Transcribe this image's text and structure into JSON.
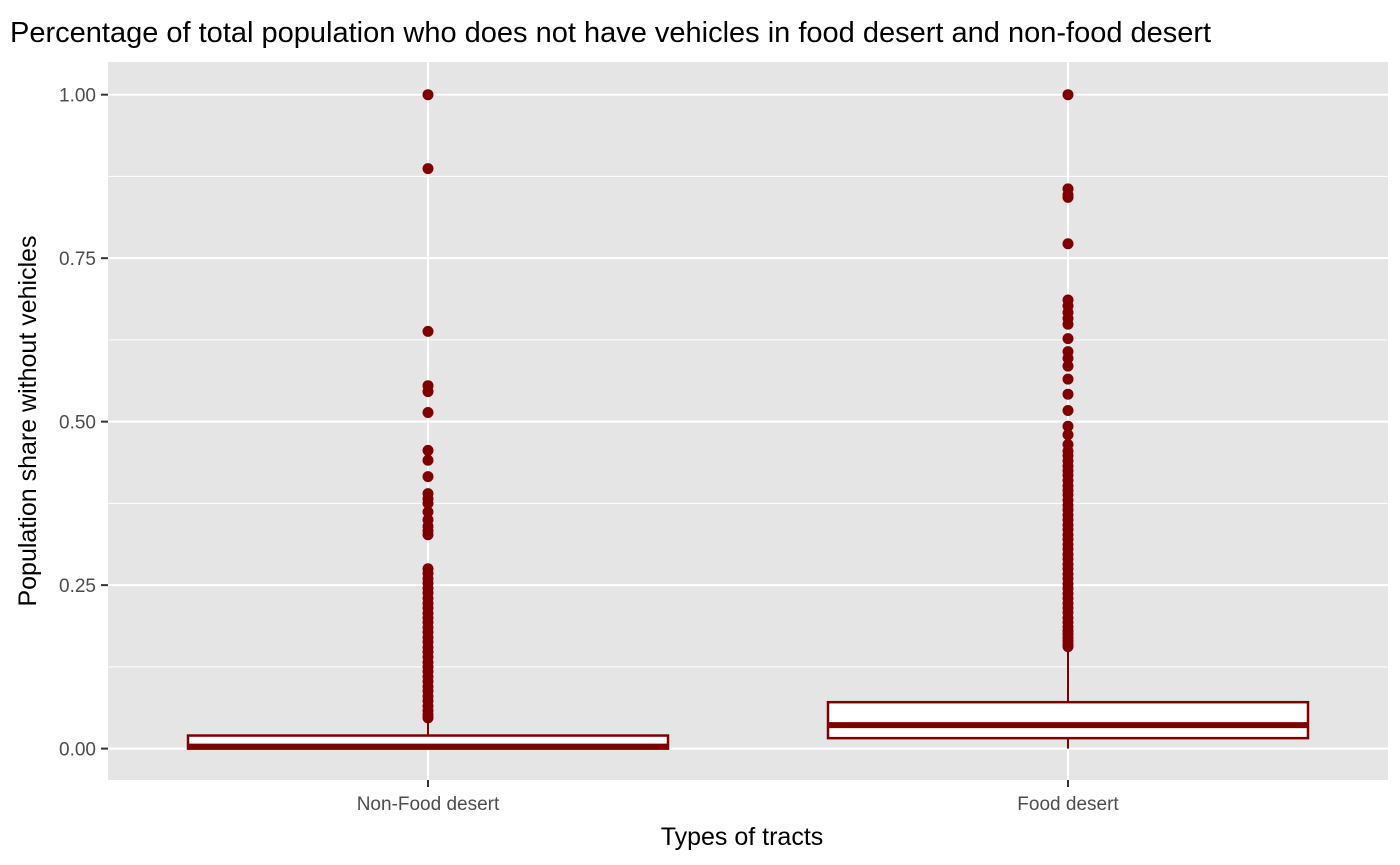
{
  "chart_data": {
    "type": "boxplot",
    "title": "Percentage of total population who does not have vehicles in food desert and non-food desert",
    "xlabel": "Types of tracts",
    "ylabel": "Population share without vehicles",
    "ylim": [
      -0.048,
      1.05
    ],
    "yticks": [
      0.0,
      0.25,
      0.5,
      0.75,
      1.0
    ],
    "ytick_labels": [
      "0.00",
      "0.25",
      "0.50",
      "0.75",
      "1.00"
    ],
    "grid": true,
    "colors": {
      "box_stroke": "#800000",
      "outlier": "#800000",
      "box_fill": "#ffffff",
      "panel": "#e5e5e5"
    },
    "categories": [
      "Non-Food desert",
      "Food desert"
    ],
    "boxes": [
      {
        "category": "Non-Food desert",
        "min": 0.0,
        "q1": 0.0,
        "median": 0.003,
        "q3": 0.02,
        "max": 0.045,
        "outliers": [
          1.0,
          0.887,
          0.638,
          0.555,
          0.546,
          0.514,
          0.456,
          0.441,
          0.416,
          0.39,
          0.382,
          0.375,
          0.362,
          0.35,
          0.34,
          0.333,
          0.327,
          0.275,
          0.268,
          0.26,
          0.253,
          0.245,
          0.238,
          0.23,
          0.222,
          0.215,
          0.207,
          0.2,
          0.193,
          0.185,
          0.178,
          0.17,
          0.163,
          0.155,
          0.148,
          0.14,
          0.132,
          0.125,
          0.118,
          0.11,
          0.103,
          0.095,
          0.088,
          0.08,
          0.073,
          0.065,
          0.058,
          0.052,
          0.047
        ]
      },
      {
        "category": "Food desert",
        "min": 0.0,
        "q1": 0.016,
        "median": 0.036,
        "q3": 0.071,
        "max": 0.152,
        "outliers": [
          1.0,
          0.856,
          0.847,
          0.843,
          0.772,
          0.686,
          0.677,
          0.667,
          0.658,
          0.649,
          0.627,
          0.607,
          0.597,
          0.585,
          0.565,
          0.542,
          0.517,
          0.493,
          0.48,
          0.465,
          0.455,
          0.448,
          0.44,
          0.432,
          0.425,
          0.418,
          0.41,
          0.402,
          0.395,
          0.388,
          0.38,
          0.372,
          0.365,
          0.357,
          0.35,
          0.342,
          0.335,
          0.327,
          0.32,
          0.312,
          0.305,
          0.297,
          0.29,
          0.282,
          0.275,
          0.267,
          0.26,
          0.252,
          0.245,
          0.237,
          0.23,
          0.222,
          0.215,
          0.208,
          0.2,
          0.193,
          0.186,
          0.18,
          0.175,
          0.17,
          0.165,
          0.16,
          0.156
        ]
      }
    ]
  }
}
